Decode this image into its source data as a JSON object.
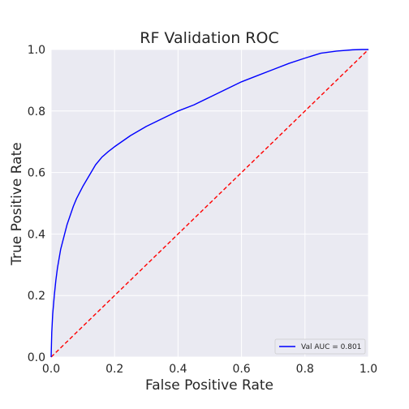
{
  "chart_data": {
    "type": "line",
    "title": "RF Validation ROC",
    "xlabel": "False Positive Rate",
    "ylabel": "True Positive Rate",
    "xlim": [
      0.0,
      1.0
    ],
    "ylim": [
      0.0,
      1.0
    ],
    "xticks": [
      0.0,
      0.2,
      0.4,
      0.6,
      0.8,
      1.0
    ],
    "yticks": [
      0.0,
      0.2,
      0.4,
      0.6,
      0.8,
      1.0
    ],
    "xtick_labels": [
      "0.0",
      "0.2",
      "0.4",
      "0.6",
      "0.8",
      "1.0"
    ],
    "ytick_labels": [
      "0.0",
      "0.2",
      "0.4",
      "0.6",
      "0.8",
      "1.0"
    ],
    "grid": true,
    "background_color": "#eaeaf2",
    "legend_position": "lower-right",
    "series": [
      {
        "name": "Val AUC = 0.801",
        "color": "#0000ff",
        "style": "solid",
        "x": [
          0.0,
          0.002,
          0.005,
          0.01,
          0.015,
          0.02,
          0.03,
          0.04,
          0.05,
          0.06,
          0.07,
          0.08,
          0.09,
          0.1,
          0.12,
          0.14,
          0.16,
          0.18,
          0.2,
          0.25,
          0.3,
          0.35,
          0.4,
          0.45,
          0.5,
          0.55,
          0.6,
          0.65,
          0.7,
          0.75,
          0.8,
          0.85,
          0.9,
          0.95,
          0.98,
          1.0
        ],
        "y": [
          0.0,
          0.08,
          0.14,
          0.2,
          0.25,
          0.29,
          0.35,
          0.39,
          0.43,
          0.46,
          0.49,
          0.515,
          0.535,
          0.555,
          0.59,
          0.625,
          0.65,
          0.668,
          0.684,
          0.72,
          0.75,
          0.775,
          0.8,
          0.82,
          0.845,
          0.87,
          0.895,
          0.915,
          0.935,
          0.955,
          0.972,
          0.988,
          0.995,
          0.999,
          1.0,
          1.0
        ]
      },
      {
        "name": "",
        "color": "#ff0000",
        "style": "dashed",
        "x": [
          0.0,
          1.0
        ],
        "y": [
          0.0,
          1.0
        ]
      }
    ]
  }
}
